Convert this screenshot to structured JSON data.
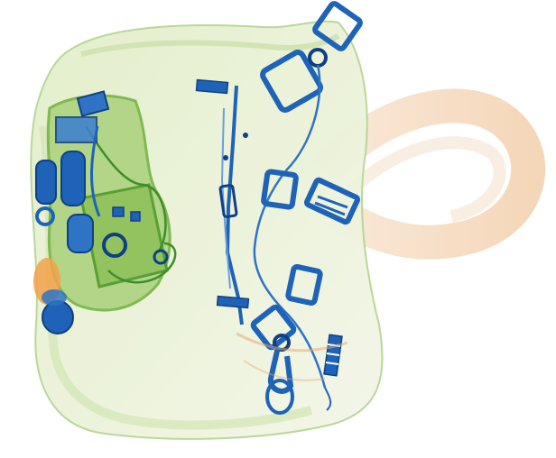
{
  "image": {
    "kind": "x-ray baggage scan",
    "description": "",
    "colors": {
      "background": "#ffffff",
      "organic_light": "#e7f0cf",
      "organic_mid": "#b9d98a",
      "organic_dark": "#7fbf3f",
      "strap": "#f3d3b3",
      "strap_dark": "#e6a66a",
      "metal": "#1e63b8",
      "metal_dark": "#0f3f85",
      "orange": "#f2a24a"
    }
  }
}
